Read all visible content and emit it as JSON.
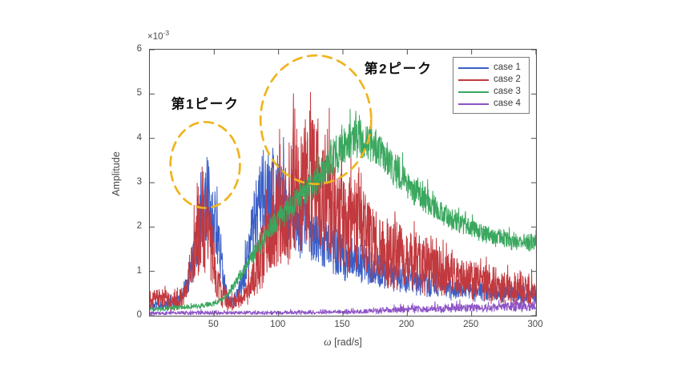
{
  "figure": {
    "offset_label": "×10",
    "offset_exponent": "-3",
    "ylabel": "Amplitude",
    "xlabel_symbol": "ω",
    "xlabel_unit": " [rad/s]"
  },
  "chart_data": {
    "type": "line",
    "title": "",
    "xlabel": "ω [rad/s]",
    "ylabel": "Amplitude",
    "y_scale_label": "×10⁻³",
    "y_unit_multiplier": 0.001,
    "xlim": [
      0,
      300
    ],
    "ylim": [
      0,
      6
    ],
    "xticks": [
      50,
      100,
      150,
      200,
      250,
      300
    ],
    "yticks": [
      0,
      1,
      2,
      3,
      4,
      5,
      6
    ],
    "grid": false,
    "axis_color": "#4d4d4d",
    "legend_position": "top-right",
    "highlight_color": "#EFB41E",
    "series": [
      {
        "name": "case 1",
        "color": "#3A5EC5",
        "noise": {
          "floor": 0.45,
          "spike_threshold": 0.8,
          "spike_amp": 0.22,
          "jitter": 0.06
        },
        "keypoints": [
          [
            0,
            0.3
          ],
          [
            8,
            0.32
          ],
          [
            15,
            0.35
          ],
          [
            22,
            0.45
          ],
          [
            28,
            0.8
          ],
          [
            33,
            1.6
          ],
          [
            38,
            2.8
          ],
          [
            42,
            3.55
          ],
          [
            45,
            3.7
          ],
          [
            48,
            3.35
          ],
          [
            52,
            2.6
          ],
          [
            56,
            1.4
          ],
          [
            60,
            0.55
          ],
          [
            64,
            0.38
          ],
          [
            68,
            0.6
          ],
          [
            72,
            1.1
          ],
          [
            76,
            1.9
          ],
          [
            80,
            2.6
          ],
          [
            84,
            3.1
          ],
          [
            88,
            3.45
          ],
          [
            92,
            3.6
          ],
          [
            97,
            3.65
          ],
          [
            102,
            3.5
          ],
          [
            108,
            3.2
          ],
          [
            115,
            2.9
          ],
          [
            122,
            2.6
          ],
          [
            130,
            2.35
          ],
          [
            140,
            2.05
          ],
          [
            150,
            1.85
          ],
          [
            160,
            1.65
          ],
          [
            170,
            1.5
          ],
          [
            180,
            1.35
          ],
          [
            190,
            1.22
          ],
          [
            200,
            1.12
          ],
          [
            215,
            1.0
          ],
          [
            230,
            0.9
          ],
          [
            245,
            0.82
          ],
          [
            260,
            0.75
          ],
          [
            275,
            0.7
          ],
          [
            290,
            0.66
          ],
          [
            300,
            0.63
          ]
        ]
      },
      {
        "name": "case 2",
        "color": "#C2393E",
        "noise": {
          "floor": 0.3,
          "spike_threshold": 0.8,
          "spike_amp": 0.28,
          "jitter": 0.08
        },
        "keypoints": [
          [
            0,
            0.55
          ],
          [
            5,
            0.6
          ],
          [
            10,
            0.55
          ],
          [
            15,
            0.5
          ],
          [
            20,
            0.5
          ],
          [
            25,
            0.55
          ],
          [
            28,
            0.8
          ],
          [
            32,
            1.5
          ],
          [
            36,
            2.6
          ],
          [
            40,
            3.2
          ],
          [
            44,
            2.9
          ],
          [
            48,
            2.2
          ],
          [
            52,
            1.3
          ],
          [
            56,
            0.7
          ],
          [
            60,
            0.42
          ],
          [
            65,
            0.4
          ],
          [
            70,
            0.55
          ],
          [
            75,
            0.85
          ],
          [
            80,
            1.3
          ],
          [
            85,
            1.9
          ],
          [
            90,
            2.5
          ],
          [
            95,
            3.0
          ],
          [
            100,
            3.4
          ],
          [
            105,
            3.7
          ],
          [
            110,
            4.0
          ],
          [
            115,
            4.25
          ],
          [
            120,
            4.45
          ],
          [
            125,
            4.55
          ],
          [
            130,
            4.5
          ],
          [
            135,
            4.35
          ],
          [
            140,
            4.1
          ],
          [
            145,
            3.85
          ],
          [
            150,
            3.55
          ],
          [
            155,
            3.3
          ],
          [
            160,
            3.05
          ],
          [
            165,
            2.85
          ],
          [
            170,
            2.65
          ],
          [
            175,
            2.5
          ],
          [
            180,
            2.35
          ],
          [
            190,
            2.1
          ],
          [
            200,
            1.9
          ],
          [
            210,
            1.72
          ],
          [
            220,
            1.58
          ],
          [
            230,
            1.45
          ],
          [
            240,
            1.33
          ],
          [
            250,
            1.22
          ],
          [
            260,
            1.12
          ],
          [
            270,
            1.03
          ],
          [
            280,
            0.95
          ],
          [
            290,
            0.88
          ],
          [
            300,
            0.82
          ]
        ]
      },
      {
        "name": "case 3",
        "color": "#3AA75E",
        "noise": {
          "floor": 0.8,
          "spike_threshold": 0.85,
          "spike_amp": 0.1,
          "jitter": 0.05
        },
        "keypoints": [
          [
            0,
            0.15
          ],
          [
            10,
            0.17
          ],
          [
            20,
            0.2
          ],
          [
            30,
            0.22
          ],
          [
            40,
            0.25
          ],
          [
            48,
            0.28
          ],
          [
            55,
            0.38
          ],
          [
            62,
            0.6
          ],
          [
            68,
            0.9
          ],
          [
            75,
            1.25
          ],
          [
            82,
            1.6
          ],
          [
            90,
            2.0
          ],
          [
            98,
            2.35
          ],
          [
            105,
            2.6
          ],
          [
            112,
            2.85
          ],
          [
            120,
            3.1
          ],
          [
            128,
            3.35
          ],
          [
            136,
            3.65
          ],
          [
            144,
            3.95
          ],
          [
            150,
            4.2
          ],
          [
            156,
            4.35
          ],
          [
            162,
            4.42
          ],
          [
            168,
            4.38
          ],
          [
            174,
            4.25
          ],
          [
            180,
            4.05
          ],
          [
            188,
            3.75
          ],
          [
            196,
            3.45
          ],
          [
            205,
            3.15
          ],
          [
            215,
            2.85
          ],
          [
            225,
            2.6
          ],
          [
            235,
            2.4
          ],
          [
            245,
            2.25
          ],
          [
            255,
            2.1
          ],
          [
            265,
            2.0
          ],
          [
            275,
            1.92
          ],
          [
            285,
            1.86
          ],
          [
            295,
            1.82
          ],
          [
            300,
            1.85
          ]
        ]
      },
      {
        "name": "case 4",
        "color": "#8D53C6",
        "noise": {
          "floor": 0.35,
          "spike_threshold": 0.85,
          "spike_amp": 0.5,
          "jitter": 0.03
        },
        "keypoints": [
          [
            0,
            0.08
          ],
          [
            30,
            0.09
          ],
          [
            60,
            0.09
          ],
          [
            90,
            0.1
          ],
          [
            120,
            0.1
          ],
          [
            150,
            0.11
          ],
          [
            165,
            0.13
          ],
          [
            180,
            0.17
          ],
          [
            195,
            0.2
          ],
          [
            210,
            0.22
          ],
          [
            225,
            0.24
          ],
          [
            240,
            0.26
          ],
          [
            255,
            0.27
          ],
          [
            270,
            0.28
          ],
          [
            285,
            0.3
          ],
          [
            300,
            0.32
          ]
        ]
      }
    ],
    "legend_entries": [
      "case 1",
      "case 2",
      "case 3",
      "case 4"
    ],
    "annotations": [
      {
        "text": "第1ピーク",
        "x": 43,
        "y": 4.8
      },
      {
        "text": "第2ピーク",
        "x": 193,
        "y": 5.6
      }
    ],
    "ellipses": [
      {
        "cx": 43,
        "cy": 3.4,
        "rx": 27,
        "ry": 0.97
      },
      {
        "cx": 129,
        "cy": 4.42,
        "rx": 43,
        "ry": 1.45
      }
    ]
  }
}
